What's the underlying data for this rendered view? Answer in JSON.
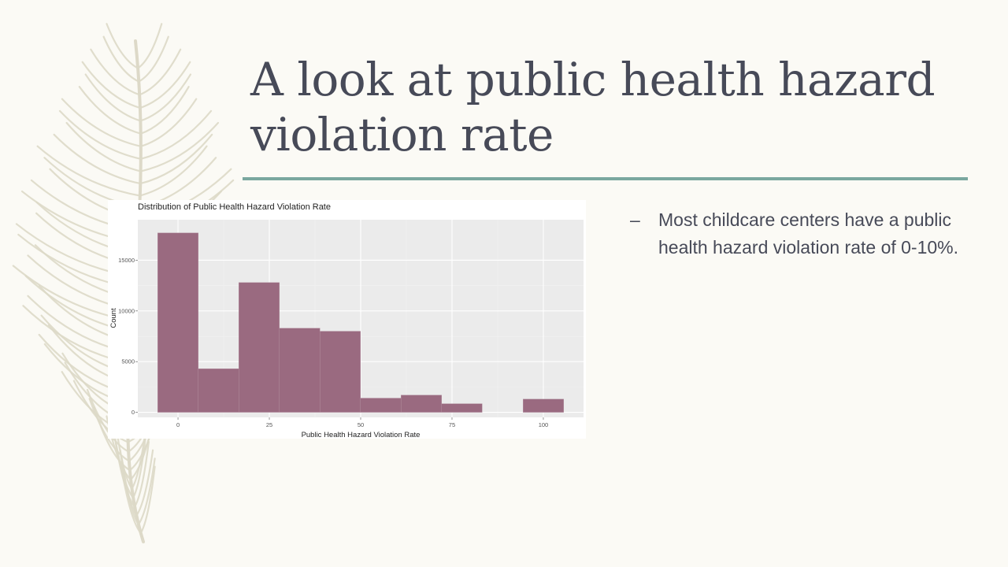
{
  "slide": {
    "title": "A look at public health hazard violation rate",
    "bullets": [
      {
        "marker": "–",
        "text": "Most childcare centers have a public health hazard violation rate of 0-10%."
      }
    ]
  },
  "colors": {
    "background": "#fbfaf5",
    "title_text": "#474a58",
    "title_rule": "#7aa79f",
    "bar_fill": "#9a6a80",
    "plot_background": "#ebebeb",
    "feather": "#ddd9c8"
  },
  "chart_data": {
    "type": "bar",
    "title": "Distribution of Public Health Hazard Violation Rate",
    "xlabel": "Public Health Hazard Violation Rate",
    "ylabel": "Count",
    "xlim": [
      -11,
      111
    ],
    "ylim": [
      -500,
      19000
    ],
    "x_ticks": [
      0,
      25,
      50,
      75,
      100
    ],
    "x_tick_labels": [
      "0",
      "25",
      "50",
      "75",
      "100"
    ],
    "y_ticks": [
      0,
      5000,
      10000,
      15000
    ],
    "y_tick_labels": [
      "0",
      "5000",
      "10000",
      "15000"
    ],
    "grid": true,
    "legend": "none",
    "bins": [
      {
        "x0": -5.55,
        "x1": 5.55,
        "value": 17700
      },
      {
        "x0": 5.55,
        "x1": 16.65,
        "value": 4300
      },
      {
        "x0": 16.65,
        "x1": 27.75,
        "value": 12800
      },
      {
        "x0": 27.75,
        "x1": 38.85,
        "value": 8300
      },
      {
        "x0": 38.85,
        "x1": 49.95,
        "value": 8000
      },
      {
        "x0": 49.95,
        "x1": 61.05,
        "value": 1400
      },
      {
        "x0": 61.05,
        "x1": 72.15,
        "value": 1700
      },
      {
        "x0": 72.15,
        "x1": 83.25,
        "value": 850
      },
      {
        "x0": 94.45,
        "x1": 105.55,
        "value": 1300
      }
    ]
  }
}
